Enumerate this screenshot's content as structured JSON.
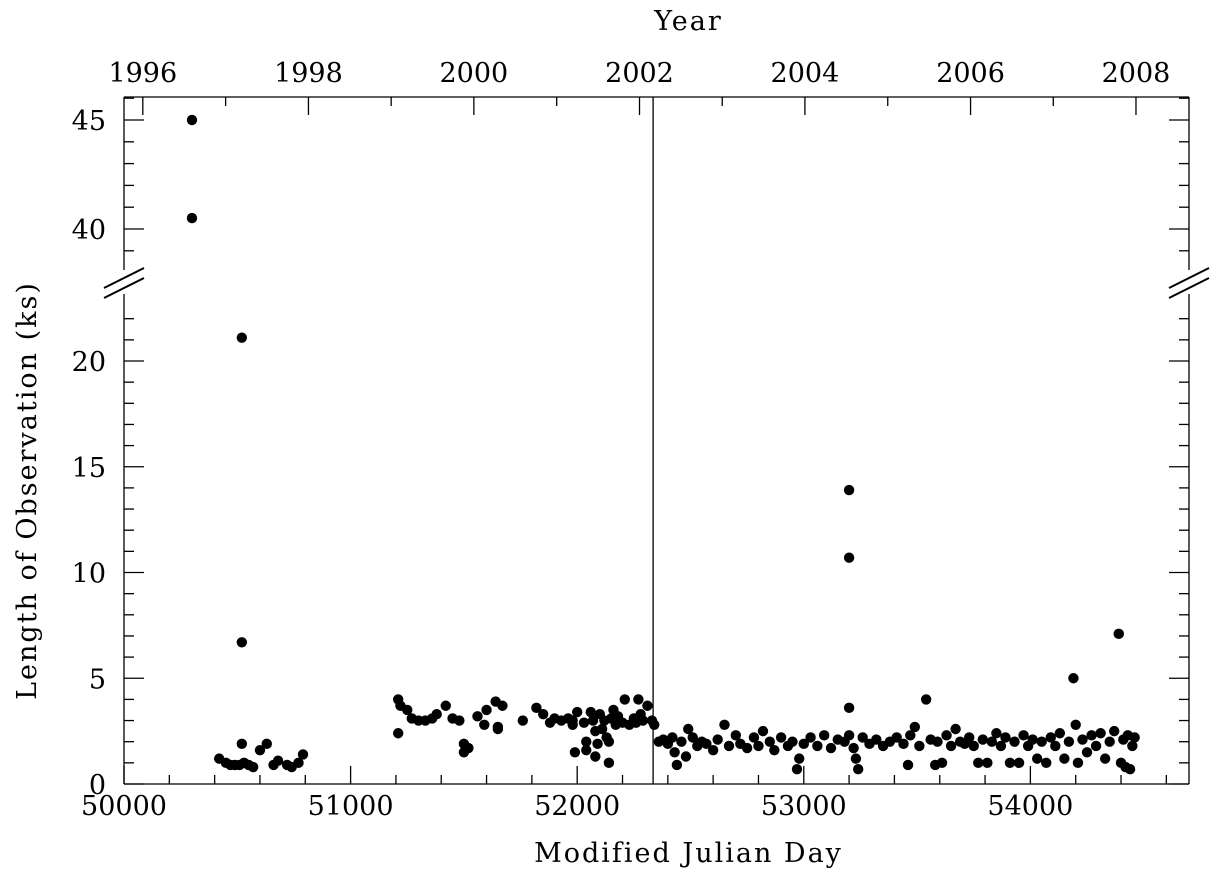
{
  "chart_data": {
    "type": "scatter",
    "xlabel": "Modified Julian Day",
    "ylabel": "Length of Observation (ks)",
    "top_xlabel": "Year",
    "xlim": [
      50000,
      54700
    ],
    "y_axis_broken": true,
    "ylim_lower": [
      0,
      20
    ],
    "ylim_upper": [
      40,
      45
    ],
    "x_ticks": [
      50000,
      51000,
      52000,
      53000,
      54000
    ],
    "x_tick_labels": [
      "50000",
      "51000",
      "52000",
      "53000",
      "54000"
    ],
    "y_ticks_lower": [
      0,
      5,
      10,
      15,
      20
    ],
    "y_tick_labels_lower": [
      "0",
      "5",
      "10",
      "15",
      "20"
    ],
    "y_ticks_upper": [
      40,
      45
    ],
    "y_tick_labels_upper": [
      "40",
      "45"
    ],
    "top_ticks": [
      {
        "label": "1996",
        "mjd": 50083
      },
      {
        "label": "1998",
        "mjd": 50814
      },
      {
        "label": "2000",
        "mjd": 51544
      },
      {
        "label": "2002",
        "mjd": 52275
      },
      {
        "label": "2004",
        "mjd": 53005
      },
      {
        "label": "2006",
        "mjd": 53736
      },
      {
        "label": "2008",
        "mjd": 54466
      }
    ],
    "vertical_line_mjd": 52335,
    "grid": false,
    "legend": "none",
    "point_color": "#000000",
    "points": [
      [
        50300,
        45.0
      ],
      [
        50300,
        40.5
      ],
      [
        50520,
        21.1
      ],
      [
        50520,
        6.7
      ],
      [
        50520,
        1.9
      ],
      [
        50420,
        1.2
      ],
      [
        50450,
        1.0
      ],
      [
        50470,
        0.9
      ],
      [
        50490,
        0.9
      ],
      [
        50510,
        0.9
      ],
      [
        50530,
        1.0
      ],
      [
        50550,
        0.9
      ],
      [
        50570,
        0.8
      ],
      [
        50600,
        1.6
      ],
      [
        50630,
        1.9
      ],
      [
        50660,
        0.9
      ],
      [
        50680,
        1.1
      ],
      [
        50720,
        0.9
      ],
      [
        50740,
        0.8
      ],
      [
        50770,
        1.0
      ],
      [
        50790,
        1.4
      ],
      [
        51210,
        2.4
      ],
      [
        51210,
        4.0
      ],
      [
        51220,
        3.7
      ],
      [
        51250,
        3.5
      ],
      [
        51270,
        3.1
      ],
      [
        51300,
        3.0
      ],
      [
        51330,
        3.0
      ],
      [
        51360,
        3.1
      ],
      [
        51380,
        3.3
      ],
      [
        51420,
        3.7
      ],
      [
        51450,
        3.1
      ],
      [
        51480,
        3.0
      ],
      [
        51500,
        1.9
      ],
      [
        51500,
        1.5
      ],
      [
        51520,
        1.7
      ],
      [
        51560,
        3.2
      ],
      [
        51590,
        2.8
      ],
      [
        51600,
        3.5
      ],
      [
        51640,
        3.9
      ],
      [
        51650,
        2.7
      ],
      [
        51650,
        2.6
      ],
      [
        51670,
        3.7
      ],
      [
        51760,
        3.0
      ],
      [
        51820,
        3.6
      ],
      [
        51850,
        3.3
      ],
      [
        51880,
        2.9
      ],
      [
        51900,
        3.1
      ],
      [
        51930,
        3.0
      ],
      [
        51960,
        3.1
      ],
      [
        51980,
        3.0
      ],
      [
        51980,
        2.8
      ],
      [
        51990,
        1.5
      ],
      [
        52000,
        3.4
      ],
      [
        52030,
        2.9
      ],
      [
        52040,
        1.6
      ],
      [
        52040,
        2.0
      ],
      [
        52060,
        3.4
      ],
      [
        52070,
        3.0
      ],
      [
        52080,
        2.5
      ],
      [
        52080,
        1.3
      ],
      [
        52090,
        1.9
      ],
      [
        52100,
        3.3
      ],
      [
        52110,
        2.6
      ],
      [
        52120,
        3.0
      ],
      [
        52130,
        2.2
      ],
      [
        52140,
        2.0
      ],
      [
        52140,
        1.0
      ],
      [
        52150,
        3.1
      ],
      [
        52160,
        3.5
      ],
      [
        52170,
        2.8
      ],
      [
        52180,
        3.2
      ],
      [
        52200,
        2.9
      ],
      [
        52210,
        4.0
      ],
      [
        52230,
        2.8
      ],
      [
        52250,
        3.1
      ],
      [
        52260,
        2.9
      ],
      [
        52270,
        4.0
      ],
      [
        52280,
        3.3
      ],
      [
        52290,
        3.0
      ],
      [
        52310,
        3.7
      ],
      [
        52330,
        3.0
      ],
      [
        52340,
        2.8
      ],
      [
        52360,
        2.0
      ],
      [
        52380,
        2.1
      ],
      [
        52400,
        1.9
      ],
      [
        52420,
        2.2
      ],
      [
        52430,
        1.5
      ],
      [
        52440,
        0.9
      ],
      [
        52460,
        2.0
      ],
      [
        52480,
        1.3
      ],
      [
        52490,
        2.6
      ],
      [
        52510,
        2.2
      ],
      [
        52530,
        1.8
      ],
      [
        52550,
        2.0
      ],
      [
        52570,
        1.9
      ],
      [
        52600,
        1.6
      ],
      [
        52620,
        2.1
      ],
      [
        52650,
        2.8
      ],
      [
        52670,
        1.8
      ],
      [
        52700,
        2.3
      ],
      [
        52720,
        1.9
      ],
      [
        52750,
        1.7
      ],
      [
        52780,
        2.2
      ],
      [
        52800,
        1.8
      ],
      [
        52820,
        2.5
      ],
      [
        52850,
        2.0
      ],
      [
        52870,
        1.6
      ],
      [
        52900,
        2.2
      ],
      [
        52930,
        1.8
      ],
      [
        52950,
        2.0
      ],
      [
        52970,
        0.7
      ],
      [
        52980,
        1.2
      ],
      [
        53000,
        1.9
      ],
      [
        53030,
        2.2
      ],
      [
        53060,
        1.8
      ],
      [
        53090,
        2.3
      ],
      [
        53120,
        1.7
      ],
      [
        53150,
        2.1
      ],
      [
        53180,
        2.0
      ],
      [
        53200,
        13.9
      ],
      [
        53200,
        10.7
      ],
      [
        53200,
        3.6
      ],
      [
        53200,
        2.3
      ],
      [
        53220,
        1.7
      ],
      [
        53230,
        1.2
      ],
      [
        53240,
        0.7
      ],
      [
        53260,
        2.2
      ],
      [
        53290,
        1.9
      ],
      [
        53320,
        2.1
      ],
      [
        53350,
        1.8
      ],
      [
        53380,
        2.0
      ],
      [
        53410,
        2.2
      ],
      [
        53440,
        1.9
      ],
      [
        53460,
        0.9
      ],
      [
        53470,
        2.3
      ],
      [
        53490,
        2.7
      ],
      [
        53510,
        1.8
      ],
      [
        53540,
        4.0
      ],
      [
        53560,
        2.1
      ],
      [
        53580,
        0.9
      ],
      [
        53590,
        2.0
      ],
      [
        53610,
        1.0
      ],
      [
        53630,
        2.3
      ],
      [
        53650,
        1.8
      ],
      [
        53670,
        2.6
      ],
      [
        53690,
        2.0
      ],
      [
        53710,
        1.9
      ],
      [
        53730,
        2.2
      ],
      [
        53750,
        1.8
      ],
      [
        53770,
        1.0
      ],
      [
        53790,
        2.1
      ],
      [
        53810,
        1.0
      ],
      [
        53830,
        2.0
      ],
      [
        53850,
        2.4
      ],
      [
        53870,
        1.8
      ],
      [
        53890,
        2.2
      ],
      [
        53910,
        1.0
      ],
      [
        53930,
        2.0
      ],
      [
        53950,
        1.0
      ],
      [
        53970,
        2.3
      ],
      [
        53990,
        1.8
      ],
      [
        54010,
        2.1
      ],
      [
        54030,
        1.2
      ],
      [
        54050,
        2.0
      ],
      [
        54070,
        1.0
      ],
      [
        54090,
        2.2
      ],
      [
        54110,
        1.8
      ],
      [
        54130,
        2.4
      ],
      [
        54150,
        1.2
      ],
      [
        54170,
        2.0
      ],
      [
        54190,
        5.0
      ],
      [
        54200,
        2.8
      ],
      [
        54210,
        1.0
      ],
      [
        54230,
        2.1
      ],
      [
        54250,
        1.5
      ],
      [
        54270,
        2.3
      ],
      [
        54290,
        1.8
      ],
      [
        54310,
        2.4
      ],
      [
        54330,
        1.2
      ],
      [
        54350,
        2.0
      ],
      [
        54370,
        2.5
      ],
      [
        54390,
        7.1
      ],
      [
        54400,
        1.0
      ],
      [
        54410,
        2.1
      ],
      [
        54420,
        0.8
      ],
      [
        54430,
        2.3
      ],
      [
        54440,
        0.7
      ],
      [
        54450,
        1.8
      ],
      [
        54460,
        2.2
      ]
    ]
  }
}
